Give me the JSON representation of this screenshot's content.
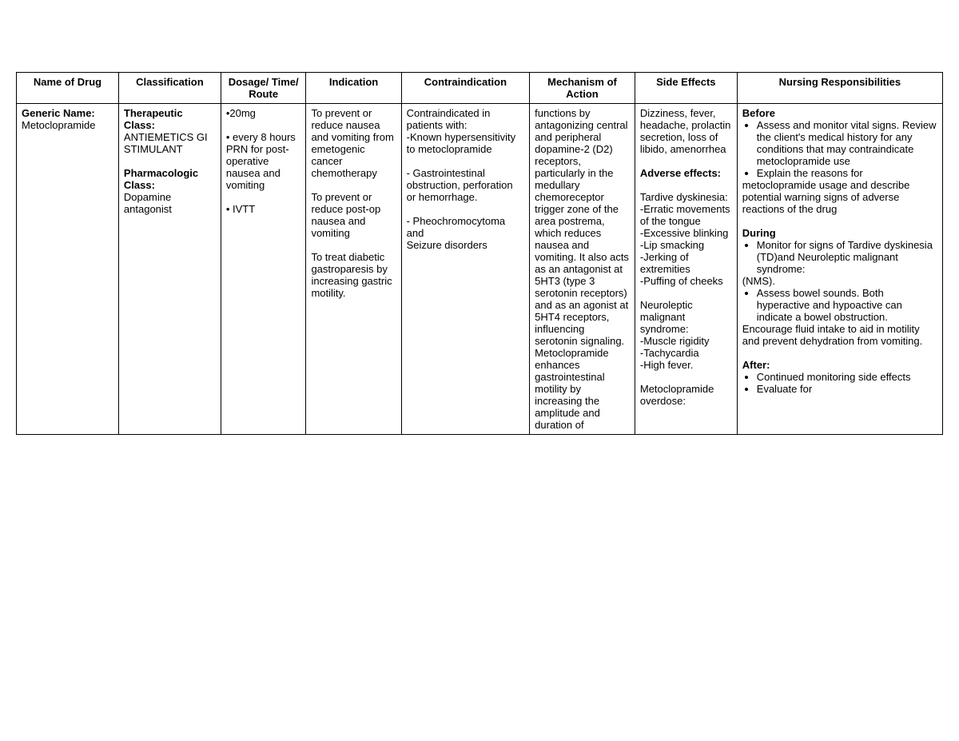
{
  "table": {
    "headers": {
      "name": "Name of Drug",
      "classification": "Classification",
      "dosage": "Dosage/ Time/ Route",
      "indication": "Indication",
      "contraindication": "Contraindication",
      "moa": "Mechanism of Action",
      "side": "Side Effects",
      "nursing": "Nursing Responsibilities"
    },
    "row": {
      "name": {
        "label": "Generic Name:",
        "value": "Metoclopramide"
      },
      "classification": {
        "ther_label": "Therapeutic Class:",
        "ther_value": "ANTIEMETICS GI STIMULANT",
        "pharm_label": "Pharmacologic Class:",
        "pharm_value": "Dopamine antagonist"
      },
      "dosage": {
        "d1": "•20mg",
        "d2": "• every 8 hours PRN for post-operative nausea and vomiting",
        "d3": "• IVTT"
      },
      "indication": {
        "i1": "To prevent or reduce nausea and vomiting from emetogenic cancer chemotherapy",
        "i2": "To prevent or reduce post-op nausea and vomiting",
        "i3": "To treat diabetic gastroparesis by increasing gastric motility."
      },
      "contra": {
        "intro": "Contraindicated in patients with:",
        "c1": "-Known hypersensitivity to metoclopramide",
        "c2": "- Gastrointestinal obstruction, perforation or hemorrhage.",
        "c3": "- Pheochromocytoma and",
        "c4": "Seizure disorders"
      },
      "moa": {
        "text": "functions by antagonizing central and peripheral dopamine-2 (D2) receptors, particularly in the medullary chemoreceptor trigger zone of the area postrema, which reduces nausea and vomiting. It also acts as an antagonist at 5HT3 (type 3 serotonin receptors) and as an agonist at 5HT4 receptors, influencing serotonin signaling. Metoclopramide enhances gastrointestinal motility by increasing the amplitude and duration of"
      },
      "side": {
        "s1": "Dizziness, fever, headache, prolactin secretion, loss of libido, amenorrhea",
        "adv_label": "Adverse effects:",
        "td_label": "Tardive dyskinesia:",
        "td1": "-Erratic movements of the tongue",
        "td2": "-Excessive blinking",
        "td3": "-Lip smacking",
        "td4": "-Jerking of extremities",
        "td5": "-Puffing of cheeks",
        "nms_label": "Neuroleptic malignant syndrome:",
        "nms1": "-Muscle rigidity",
        "nms2": "-Tachycardia",
        "nms3": "-High fever.",
        "od_label": "Metoclopramide overdose:"
      },
      "nursing": {
        "before_label": "Before",
        "before_b1": "Assess and monitor vital signs. Review the client's medical history for any conditions that may contraindicate metoclopramide use",
        "before_b2": "Explain the reasons for",
        "before_cont": "metoclopramide usage and describe potential warning signs of adverse reactions of the drug",
        "during_label": "During",
        "during_b1": "Monitor for signs of Tardive dyskinesia (TD)and Neuroleptic malignant syndrome:",
        "during_cont1": "(NMS).",
        "during_b2": "Assess bowel sounds. Both hyperactive and hypoactive can indicate a bowel obstruction.",
        "during_cont2": "Encourage fluid intake to aid in motility and prevent dehydration from vomiting.",
        "after_label": "After:",
        "after_b1": "Continued monitoring side effects",
        "after_b2": "Evaluate for"
      }
    }
  }
}
